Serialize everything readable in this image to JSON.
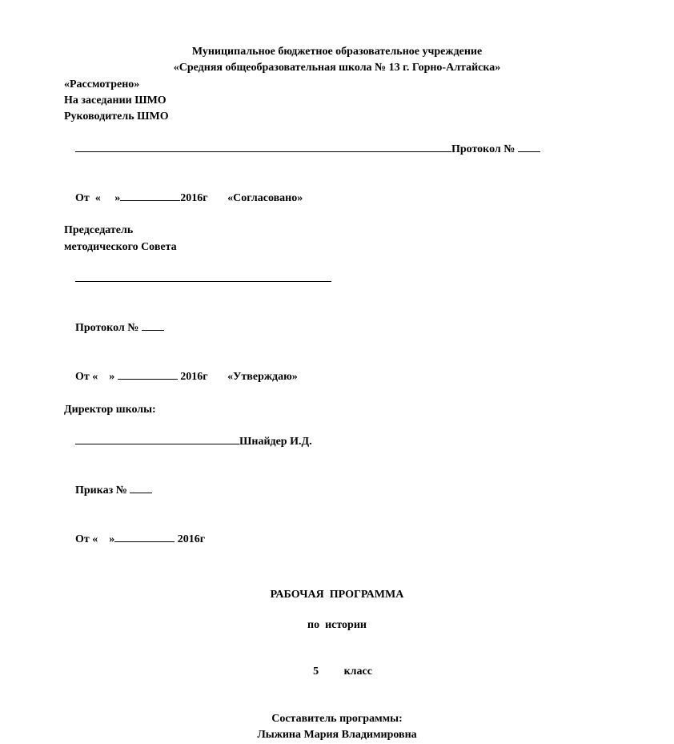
{
  "header": {
    "line1": "Муниципальное бюджетное образовательное учреждение",
    "line2": "«Средняя общеобразовательная школа № 13 г. Горно-Алтайска»"
  },
  "approval": {
    "reviewed": "«Рассмотрено»",
    "meeting": "На заседании ШМО",
    "head": "Руководитель ШМО",
    "protocol_label": "Протокол №",
    "from_prefix": "От  «     »",
    "year": "2016г",
    "agreed": "«Согласовано»",
    "chair1": "Председатель",
    "chair2": "методического Совета",
    "protocol_label2": "Протокол №",
    "from_prefix2": "От «    »",
    "year2": "2016г",
    "approved": "«Утверждаю»",
    "director": "Директор школы:",
    "director_name": "Шнайдер И.Д.",
    "order_label": "Приказ №",
    "from_prefix3": "От «    »",
    "year3": "2016г"
  },
  "title": {
    "main": "РАБОЧАЯ  ПРОГРАММА",
    "subject": "по  истории",
    "grade_num": "5",
    "grade_word": "класс",
    "compiler_label": "Составитель программы:",
    "compiler_name": "Лыжина Мария Владимировна"
  }
}
